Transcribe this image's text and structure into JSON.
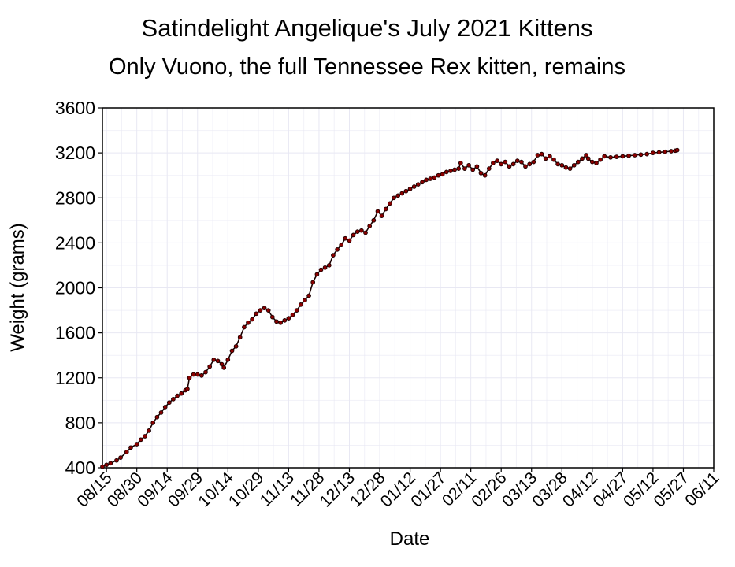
{
  "chart_data": {
    "type": "line",
    "title": "Satindelight Angelique's July 2021 Kittens",
    "subtitle": "Only Vuono, the full Tennessee Rex kitten, remains",
    "xlabel": "Date",
    "ylabel": "Weight (grams)",
    "ylim": [
      400,
      3600
    ],
    "yticks": [
      "400",
      "800",
      "1200",
      "1600",
      "2000",
      "2400",
      "2800",
      "3200",
      "3600"
    ],
    "xlim": [
      "2021-08-13",
      "2022-06-11"
    ],
    "xticks": [
      {
        "label": "08/15",
        "date": "2021-08-15"
      },
      {
        "label": "08/30",
        "date": "2021-08-30"
      },
      {
        "label": "09/14",
        "date": "2021-09-14"
      },
      {
        "label": "09/29",
        "date": "2021-09-29"
      },
      {
        "label": "10/14",
        "date": "2021-10-14"
      },
      {
        "label": "10/29",
        "date": "2021-10-29"
      },
      {
        "label": "11/13",
        "date": "2021-11-13"
      },
      {
        "label": "11/28",
        "date": "2021-11-28"
      },
      {
        "label": "12/13",
        "date": "2021-12-13"
      },
      {
        "label": "12/28",
        "date": "2021-12-28"
      },
      {
        "label": "01/12",
        "date": "2022-01-12"
      },
      {
        "label": "01/27",
        "date": "2022-01-27"
      },
      {
        "label": "02/11",
        "date": "2022-02-11"
      },
      {
        "label": "02/26",
        "date": "2022-02-26"
      },
      {
        "label": "03/13",
        "date": "2022-03-13"
      },
      {
        "label": "03/28",
        "date": "2022-03-28"
      },
      {
        "label": "04/12",
        "date": "2022-04-12"
      },
      {
        "label": "04/27",
        "date": "2022-04-27"
      },
      {
        "label": "05/12",
        "date": "2022-05-12"
      },
      {
        "label": "05/27",
        "date": "2022-05-27"
      },
      {
        "label": "06/11",
        "date": "2022-06-11"
      }
    ],
    "grid": true,
    "legend": "none",
    "colors": {
      "line": "#1a0000",
      "marker": "#8b0000"
    },
    "series": [
      {
        "points": [
          [
            "2021-08-13",
            410
          ],
          [
            "2021-08-15",
            425
          ],
          [
            "2021-08-17",
            440
          ],
          [
            "2021-08-20",
            465
          ],
          [
            "2021-08-22",
            490
          ],
          [
            "2021-08-25",
            540
          ],
          [
            "2021-08-27",
            580
          ],
          [
            "2021-08-30",
            610
          ],
          [
            "2021-09-01",
            650
          ],
          [
            "2021-09-03",
            680
          ],
          [
            "2021-09-05",
            730
          ],
          [
            "2021-09-07",
            800
          ],
          [
            "2021-09-09",
            850
          ],
          [
            "2021-09-11",
            890
          ],
          [
            "2021-09-13",
            940
          ],
          [
            "2021-09-15",
            980
          ],
          [
            "2021-09-17",
            1010
          ],
          [
            "2021-09-19",
            1040
          ],
          [
            "2021-09-21",
            1060
          ],
          [
            "2021-09-23",
            1090
          ],
          [
            "2021-09-24",
            1100
          ],
          [
            "2021-09-25",
            1200
          ],
          [
            "2021-09-27",
            1230
          ],
          [
            "2021-09-29",
            1230
          ],
          [
            "2021-10-01",
            1220
          ],
          [
            "2021-10-03",
            1250
          ],
          [
            "2021-10-05",
            1300
          ],
          [
            "2021-10-07",
            1360
          ],
          [
            "2021-10-09",
            1350
          ],
          [
            "2021-10-11",
            1320
          ],
          [
            "2021-10-12",
            1290
          ],
          [
            "2021-10-14",
            1360
          ],
          [
            "2021-10-16",
            1440
          ],
          [
            "2021-10-18",
            1480
          ],
          [
            "2021-10-20",
            1560
          ],
          [
            "2021-10-22",
            1650
          ],
          [
            "2021-10-24",
            1690
          ],
          [
            "2021-10-26",
            1720
          ],
          [
            "2021-10-28",
            1770
          ],
          [
            "2021-10-30",
            1800
          ],
          [
            "2021-11-01",
            1820
          ],
          [
            "2021-11-03",
            1800
          ],
          [
            "2021-11-05",
            1740
          ],
          [
            "2021-11-07",
            1700
          ],
          [
            "2021-11-09",
            1690
          ],
          [
            "2021-11-11",
            1710
          ],
          [
            "2021-11-13",
            1730
          ],
          [
            "2021-11-15",
            1760
          ],
          [
            "2021-11-17",
            1800
          ],
          [
            "2021-11-19",
            1850
          ],
          [
            "2021-11-21",
            1890
          ],
          [
            "2021-11-23",
            1930
          ],
          [
            "2021-11-25",
            2050
          ],
          [
            "2021-11-27",
            2120
          ],
          [
            "2021-11-29",
            2160
          ],
          [
            "2021-12-01",
            2180
          ],
          [
            "2021-12-03",
            2200
          ],
          [
            "2021-12-05",
            2290
          ],
          [
            "2021-12-07",
            2340
          ],
          [
            "2021-12-09",
            2380
          ],
          [
            "2021-12-11",
            2440
          ],
          [
            "2021-12-13",
            2420
          ],
          [
            "2021-12-15",
            2470
          ],
          [
            "2021-12-17",
            2500
          ],
          [
            "2021-12-19",
            2510
          ],
          [
            "2021-12-21",
            2490
          ],
          [
            "2021-12-23",
            2550
          ],
          [
            "2021-12-25",
            2600
          ],
          [
            "2021-12-27",
            2680
          ],
          [
            "2021-12-29",
            2640
          ],
          [
            "2021-12-31",
            2700
          ],
          [
            "2022-01-02",
            2750
          ],
          [
            "2022-01-04",
            2800
          ],
          [
            "2022-01-06",
            2820
          ],
          [
            "2022-01-08",
            2840
          ],
          [
            "2022-01-10",
            2860
          ],
          [
            "2022-01-12",
            2880
          ],
          [
            "2022-01-14",
            2900
          ],
          [
            "2022-01-16",
            2920
          ],
          [
            "2022-01-18",
            2940
          ],
          [
            "2022-01-20",
            2960
          ],
          [
            "2022-01-22",
            2970
          ],
          [
            "2022-01-24",
            2980
          ],
          [
            "2022-01-26",
            3000
          ],
          [
            "2022-01-28",
            3010
          ],
          [
            "2022-01-30",
            3030
          ],
          [
            "2022-02-01",
            3040
          ],
          [
            "2022-02-03",
            3050
          ],
          [
            "2022-02-05",
            3060
          ],
          [
            "2022-02-06",
            3110
          ],
          [
            "2022-02-08",
            3060
          ],
          [
            "2022-02-10",
            3090
          ],
          [
            "2022-02-12",
            3050
          ],
          [
            "2022-02-14",
            3080
          ],
          [
            "2022-02-16",
            3020
          ],
          [
            "2022-02-18",
            3000
          ],
          [
            "2022-02-20",
            3060
          ],
          [
            "2022-02-22",
            3110
          ],
          [
            "2022-02-24",
            3130
          ],
          [
            "2022-02-26",
            3100
          ],
          [
            "2022-02-28",
            3120
          ],
          [
            "2022-03-02",
            3080
          ],
          [
            "2022-03-04",
            3100
          ],
          [
            "2022-03-06",
            3130
          ],
          [
            "2022-03-08",
            3120
          ],
          [
            "2022-03-10",
            3080
          ],
          [
            "2022-03-12",
            3100
          ],
          [
            "2022-03-14",
            3120
          ],
          [
            "2022-03-16",
            3180
          ],
          [
            "2022-03-18",
            3190
          ],
          [
            "2022-03-20",
            3150
          ],
          [
            "2022-03-22",
            3170
          ],
          [
            "2022-03-24",
            3140
          ],
          [
            "2022-03-26",
            3100
          ],
          [
            "2022-03-28",
            3090
          ],
          [
            "2022-03-30",
            3070
          ],
          [
            "2022-04-01",
            3060
          ],
          [
            "2022-04-03",
            3090
          ],
          [
            "2022-04-05",
            3120
          ],
          [
            "2022-04-07",
            3150
          ],
          [
            "2022-04-09",
            3180
          ],
          [
            "2022-04-10",
            3150
          ],
          [
            "2022-04-12",
            3120
          ],
          [
            "2022-04-14",
            3110
          ],
          [
            "2022-04-16",
            3140
          ],
          [
            "2022-04-18",
            3170
          ],
          [
            "2022-04-21",
            3160
          ],
          [
            "2022-04-24",
            3165
          ],
          [
            "2022-04-27",
            3170
          ],
          [
            "2022-04-30",
            3175
          ],
          [
            "2022-05-03",
            3180
          ],
          [
            "2022-05-06",
            3185
          ],
          [
            "2022-05-09",
            3190
          ],
          [
            "2022-05-12",
            3200
          ],
          [
            "2022-05-15",
            3205
          ],
          [
            "2022-05-18",
            3210
          ],
          [
            "2022-05-21",
            3215
          ],
          [
            "2022-05-23",
            3220
          ],
          [
            "2022-05-24",
            3225
          ]
        ]
      }
    ]
  }
}
